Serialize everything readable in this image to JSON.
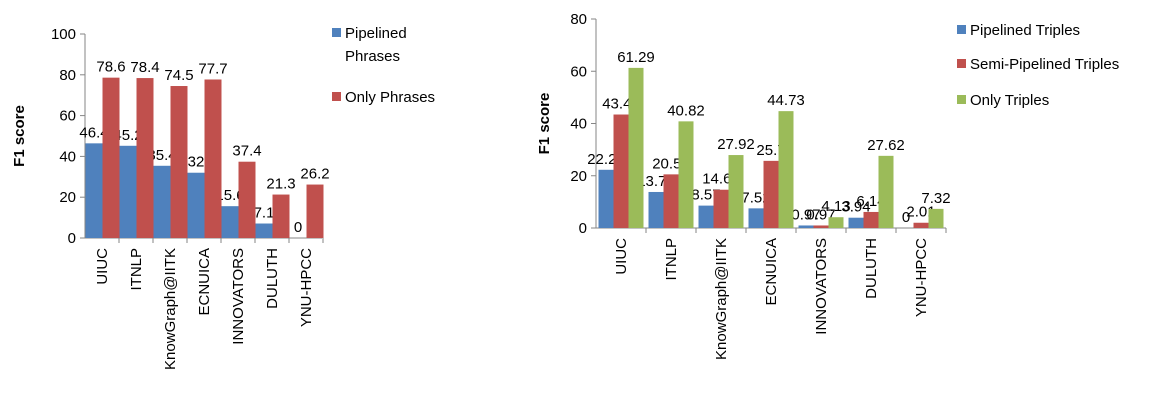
{
  "colors": {
    "blue": "#4F81BD",
    "red": "#C0504D",
    "green": "#9BBB59"
  },
  "chart_data": [
    {
      "type": "bar",
      "ylabel": "F1 score",
      "ylim": [
        0,
        100
      ],
      "yticks": [
        "0",
        "20",
        "40",
        "60",
        "80",
        "100"
      ],
      "ytick_values": [
        0,
        20,
        40,
        60,
        80,
        100
      ],
      "categories": [
        "UIUC",
        "ITNLP",
        "KnowGraph@IITK",
        "ECNUICA",
        "INNOVATORS",
        "DULUTH",
        "YNU-HPCC"
      ],
      "series": [
        {
          "name": "Pipelined Phrases",
          "legend_lines": [
            "Pipelined",
            "Phrases"
          ],
          "color": "#4F81BD",
          "values": [
            46.4,
            45.2,
            35.4,
            32,
            15.6,
            7.1,
            0
          ],
          "labels": [
            "46.4",
            "45.2",
            "35.4",
            "32",
            "15.6",
            "7.1",
            "0"
          ]
        },
        {
          "name": "Only Phrases",
          "legend_lines": [
            "Only Phrases"
          ],
          "color": "#C0504D",
          "values": [
            78.6,
            78.4,
            74.5,
            77.7,
            37.4,
            21.3,
            26.2
          ],
          "labels": [
            "78.6",
            "78.4",
            "74.5",
            "77.7",
            "37.4",
            "21.3",
            "26.2"
          ]
        }
      ],
      "legend_position": "right",
      "grid": false
    },
    {
      "type": "bar",
      "ylabel": "F1 score",
      "ylim": [
        0,
        80
      ],
      "yticks": [
        "0",
        "20",
        "40",
        "60",
        "80"
      ],
      "ytick_values": [
        0,
        20,
        40,
        60,
        80
      ],
      "categories": [
        "UIUC",
        "ITNLP",
        "KnowGraph@IITK",
        "ECNUICA",
        "INNOVATORS",
        "DULUTH",
        "YNU-HPCC"
      ],
      "series": [
        {
          "name": "Pipelined Triples",
          "legend_lines": [
            "Pipelined Triples"
          ],
          "color": "#4F81BD",
          "values": [
            22.28,
            13.79,
            8.57,
            7.52,
            0.97,
            3.94,
            0
          ],
          "labels": [
            "22.28",
            "13.79",
            "8.57",
            "7.52",
            "0.97",
            "3.94",
            "0"
          ]
        },
        {
          "name": "Semi-Pipelined Triples",
          "legend_lines": [
            "Semi-Pipelined Triples"
          ],
          "color": "#C0504D",
          "values": [
            43.44,
            20.53,
            14.65,
            25.7,
            0.97,
            6.14,
            2.01
          ],
          "labels": [
            "43.44",
            "20.53",
            "14.65",
            "25.7",
            "0.97",
            "6.14",
            "2.01"
          ]
        },
        {
          "name": "Only Triples",
          "legend_lines": [
            "Only Triples"
          ],
          "color": "#9BBB59",
          "values": [
            61.29,
            40.82,
            27.92,
            44.73,
            4.13,
            27.62,
            7.32
          ],
          "labels": [
            "61.29",
            "40.82",
            "27.92",
            "44.73",
            "4.13",
            "27.62",
            "7.32"
          ]
        }
      ],
      "legend_position": "right",
      "grid": false
    }
  ]
}
